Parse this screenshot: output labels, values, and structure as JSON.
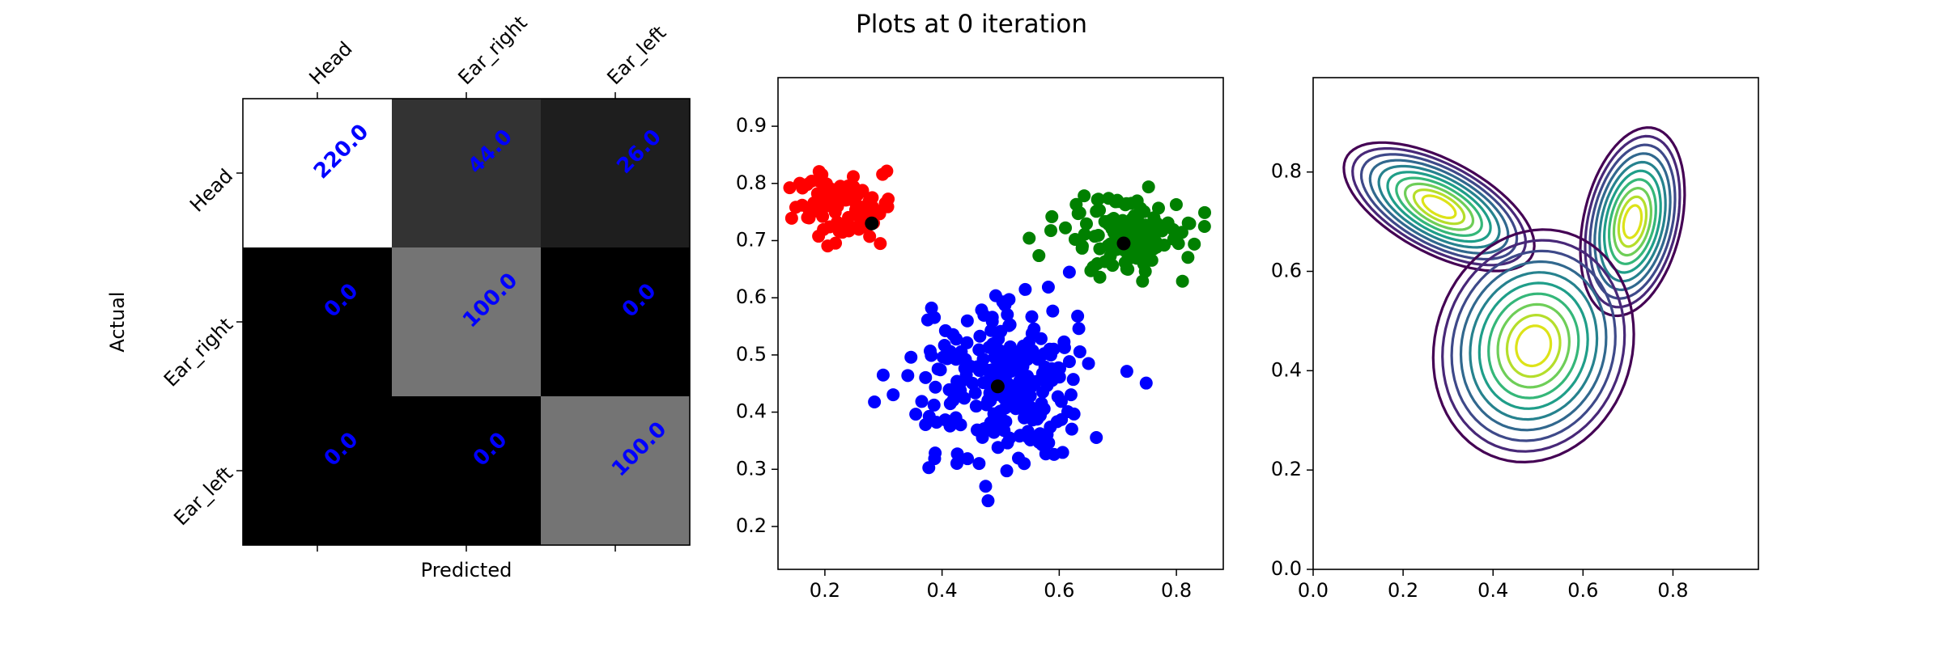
{
  "figure": {
    "title": "Plots at 0 iteration"
  },
  "chart_data": [
    {
      "type": "heatmap",
      "title": "",
      "xlabel": "Predicted",
      "ylabel": "Actual",
      "x_categories": [
        "Head",
        "Ear_right",
        "Ear_left"
      ],
      "y_categories": [
        "Head",
        "Ear_right",
        "Ear_left"
      ],
      "values": [
        [
          220.0,
          44.0,
          26.0
        ],
        [
          0.0,
          100.0,
          0.0
        ],
        [
          0.0,
          0.0,
          100.0
        ]
      ],
      "value_labels": [
        [
          "220.0",
          "44.0",
          "26.0"
        ],
        [
          "0.0",
          "100.0",
          "0.0"
        ],
        [
          "0.0",
          "0.0",
          "100.0"
        ]
      ],
      "colormap": "gray",
      "label_color": "#0000ff"
    },
    {
      "type": "scatter",
      "title": "",
      "xlim": [
        0.12,
        0.88
      ],
      "ylim": [
        0.125,
        0.985
      ],
      "xticks": [
        "0.2",
        "0.4",
        "0.6",
        "0.8"
      ],
      "yticks": [
        "0.2",
        "0.3",
        "0.4",
        "0.5",
        "0.6",
        "0.7",
        "0.8",
        "0.9"
      ],
      "series": [
        {
          "color": "#ff0000",
          "center": [
            0.23,
            0.755
          ],
          "spread": [
            0.055,
            0.04
          ],
          "count": 90
        },
        {
          "color": "#0000ff",
          "center": [
            0.5,
            0.45
          ],
          "spread": [
            0.1,
            0.09
          ],
          "count": 260
        },
        {
          "color": "#008000",
          "center": [
            0.72,
            0.71
          ],
          "spread": [
            0.07,
            0.045
          ],
          "count": 130
        }
      ],
      "centroids": [
        [
          0.28,
          0.73
        ],
        [
          0.495,
          0.445
        ],
        [
          0.71,
          0.695
        ]
      ],
      "centroid_color": "#000000"
    },
    {
      "type": "contour",
      "title": "",
      "xlim": [
        0.0,
        0.99
      ],
      "ylim": [
        0.0,
        0.99
      ],
      "xticks": [
        "0.0",
        "0.2",
        "0.4",
        "0.6",
        "0.8"
      ],
      "yticks": [
        "0.0",
        "0.2",
        "0.4",
        "0.6",
        "0.8"
      ],
      "components": [
        {
          "mean": [
            0.28,
            0.73
          ],
          "sx": 0.095,
          "sy": 0.058,
          "rho": -0.6
        },
        {
          "mean": [
            0.71,
            0.7
          ],
          "sx": 0.052,
          "sy": 0.085,
          "rho": 0.3
        },
        {
          "mean": [
            0.49,
            0.45
          ],
          "sx": 0.1,
          "sy": 0.105,
          "rho": 0.1
        }
      ],
      "colormap": "viridis",
      "levels": 10
    }
  ]
}
